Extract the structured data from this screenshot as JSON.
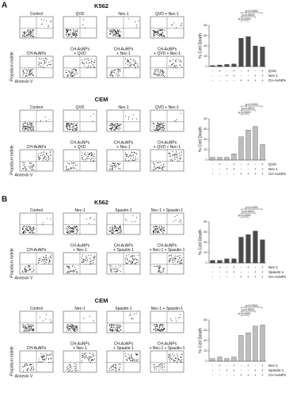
{
  "figure": {
    "panels": [
      "A",
      "B"
    ],
    "sections": [
      {
        "title": "K562",
        "y_axis_label": "Propidium Iodide",
        "x_axis_label": "Annexin V",
        "plots": [
          [
            "Control"
          ],
          [
            "QVD"
          ],
          [
            "Nec-1"
          ],
          [
            "QVD + Nec-1"
          ],
          [
            "CH-AuNPs"
          ],
          [
            "CH-AuNPs",
            "+ QVD"
          ],
          [
            "CH-AuNPs",
            "+ Nec-1"
          ],
          [
            "CH-AuNPs",
            "+ QVD + Nec-1"
          ]
        ]
      },
      {
        "title": "CEM",
        "y_axis_label": "Propidium Iodide",
        "x_axis_label": "Annexin V",
        "plots": [
          [
            "Control"
          ],
          [
            "QVD"
          ],
          [
            "Nec-1"
          ],
          [
            "QVD + Nec-1"
          ],
          [
            "CH-AuNPs"
          ],
          [
            "CH-AuNPs",
            "+ QVD"
          ],
          [
            "CH-AuNPs",
            "+ Nec-1"
          ],
          [
            "CH-AuNPs",
            "+ QVD + Nec-1"
          ]
        ]
      },
      {
        "title": "K562",
        "y_axis_label": "Propidium Iodide",
        "x_axis_label": "Annexin V",
        "plots": [
          [
            "Control"
          ],
          [
            "Nec-1"
          ],
          [
            "Spautin-1"
          ],
          [
            "Nec-1 + Spautin-1"
          ],
          [
            "CH-AuNPs"
          ],
          [
            "CH-AuNPs",
            "+ Nec-1"
          ],
          [
            "CH-AuNPs",
            "+ Spautin-1"
          ],
          [
            "CH-AuNPs",
            "+ Nec-1 + Spautin-1"
          ]
        ]
      },
      {
        "title": "CEM",
        "y_axis_label": "Propidium Iodide",
        "x_axis_label": "Annexin V",
        "plots": [
          [
            "Control"
          ],
          [
            "Nec-1"
          ],
          [
            "Spautin-1"
          ],
          [
            "Nec-1 + Spautin-1"
          ],
          [
            "CH-AuNPs"
          ],
          [
            "CH-AuNPs",
            "+ Nec-1"
          ],
          [
            "CH-AuNPs",
            "+ Spautin-1"
          ],
          [
            "CH-AuNPs",
            "+ Nec-1 + Spautin-1"
          ]
        ]
      }
    ]
  },
  "chart_data": [
    {
      "type": "bar",
      "y_label": "% Cell Death",
      "values": [
        2,
        3,
        4,
        5,
        55,
        58,
        40,
        38
      ],
      "color": "#4a4a4a",
      "ylim": [
        0,
        80
      ],
      "yticks": [
        0,
        20,
        40,
        60,
        80
      ],
      "annotations": [
        "p<0.0001",
        "p=0.0003",
        "p=0.0001"
      ],
      "conditions": [
        {
          "name": "QVD",
          "signs": [
            "-",
            "+",
            "-",
            "+",
            "-",
            "+",
            "-",
            "+"
          ]
        },
        {
          "name": "Nec-1",
          "signs": [
            "-",
            "-",
            "+",
            "+",
            "-",
            "-",
            "+",
            "+"
          ]
        },
        {
          "name": "CH-AuNPs",
          "signs": [
            "-",
            "-",
            "-",
            "-",
            "+",
            "+",
            "+",
            "+"
          ]
        }
      ]
    },
    {
      "type": "bar",
      "y_label": "% Cell Death",
      "values": [
        5,
        5,
        5,
        12,
        45,
        58,
        65,
        30
      ],
      "color": "#bdbdbd",
      "ylim": [
        0,
        80
      ],
      "yticks": [
        0,
        20,
        40,
        60,
        80
      ],
      "annotations": [
        "p<0.0001",
        "p=0.0001",
        "p=0.0001"
      ],
      "conditions": [
        {
          "name": "QVD",
          "signs": [
            "-",
            "+",
            "-",
            "+",
            "-",
            "+",
            "-",
            "+"
          ]
        },
        {
          "name": "Nec-1",
          "signs": [
            "-",
            "-",
            "+",
            "+",
            "-",
            "-",
            "+",
            "+"
          ]
        },
        {
          "name": "CH-AuNPs",
          "signs": [
            "-",
            "-",
            "-",
            "-",
            "+",
            "+",
            "+",
            "+"
          ]
        }
      ]
    },
    {
      "type": "bar",
      "y_label": "% Cell Death",
      "values": [
        5,
        5,
        8,
        8,
        50,
        55,
        62,
        45
      ],
      "color": "#4a4a4a",
      "ylim": [
        0,
        80
      ],
      "yticks": [
        0,
        20,
        40,
        60,
        80
      ],
      "annotations": [
        "p<0.0001",
        "p=0.0001",
        "p=0.0001"
      ],
      "conditions": [
        {
          "name": "Nec-1",
          "signs": [
            "-",
            "+",
            "-",
            "+",
            "-",
            "+",
            "-",
            "+"
          ]
        },
        {
          "name": "Spautin-1",
          "signs": [
            "-",
            "-",
            "+",
            "+",
            "-",
            "-",
            "+",
            "+"
          ]
        },
        {
          "name": "CH-AuNPs",
          "signs": [
            "-",
            "-",
            "-",
            "-",
            "+",
            "+",
            "+",
            "+"
          ]
        }
      ]
    },
    {
      "type": "bar",
      "y_label": "% Cell Death",
      "values": [
        5,
        8,
        5,
        8,
        50,
        55,
        68,
        70
      ],
      "color": "#bdbdbd",
      "ylim": [
        0,
        80
      ],
      "yticks": [
        0,
        20,
        40,
        60,
        80
      ],
      "annotations": [
        "p<0.0001",
        "p=0.0001",
        "p<0.0001"
      ],
      "conditions": [
        {
          "name": "Nec-1",
          "signs": [
            "-",
            "+",
            "-",
            "+",
            "-",
            "+",
            "-",
            "+"
          ]
        },
        {
          "name": "Spautin-1",
          "signs": [
            "-",
            "-",
            "+",
            "+",
            "-",
            "-",
            "+",
            "+"
          ]
        },
        {
          "name": "CH-AuNPs",
          "signs": [
            "-",
            "-",
            "-",
            "-",
            "+",
            "+",
            "+",
            "+"
          ]
        }
      ]
    }
  ]
}
